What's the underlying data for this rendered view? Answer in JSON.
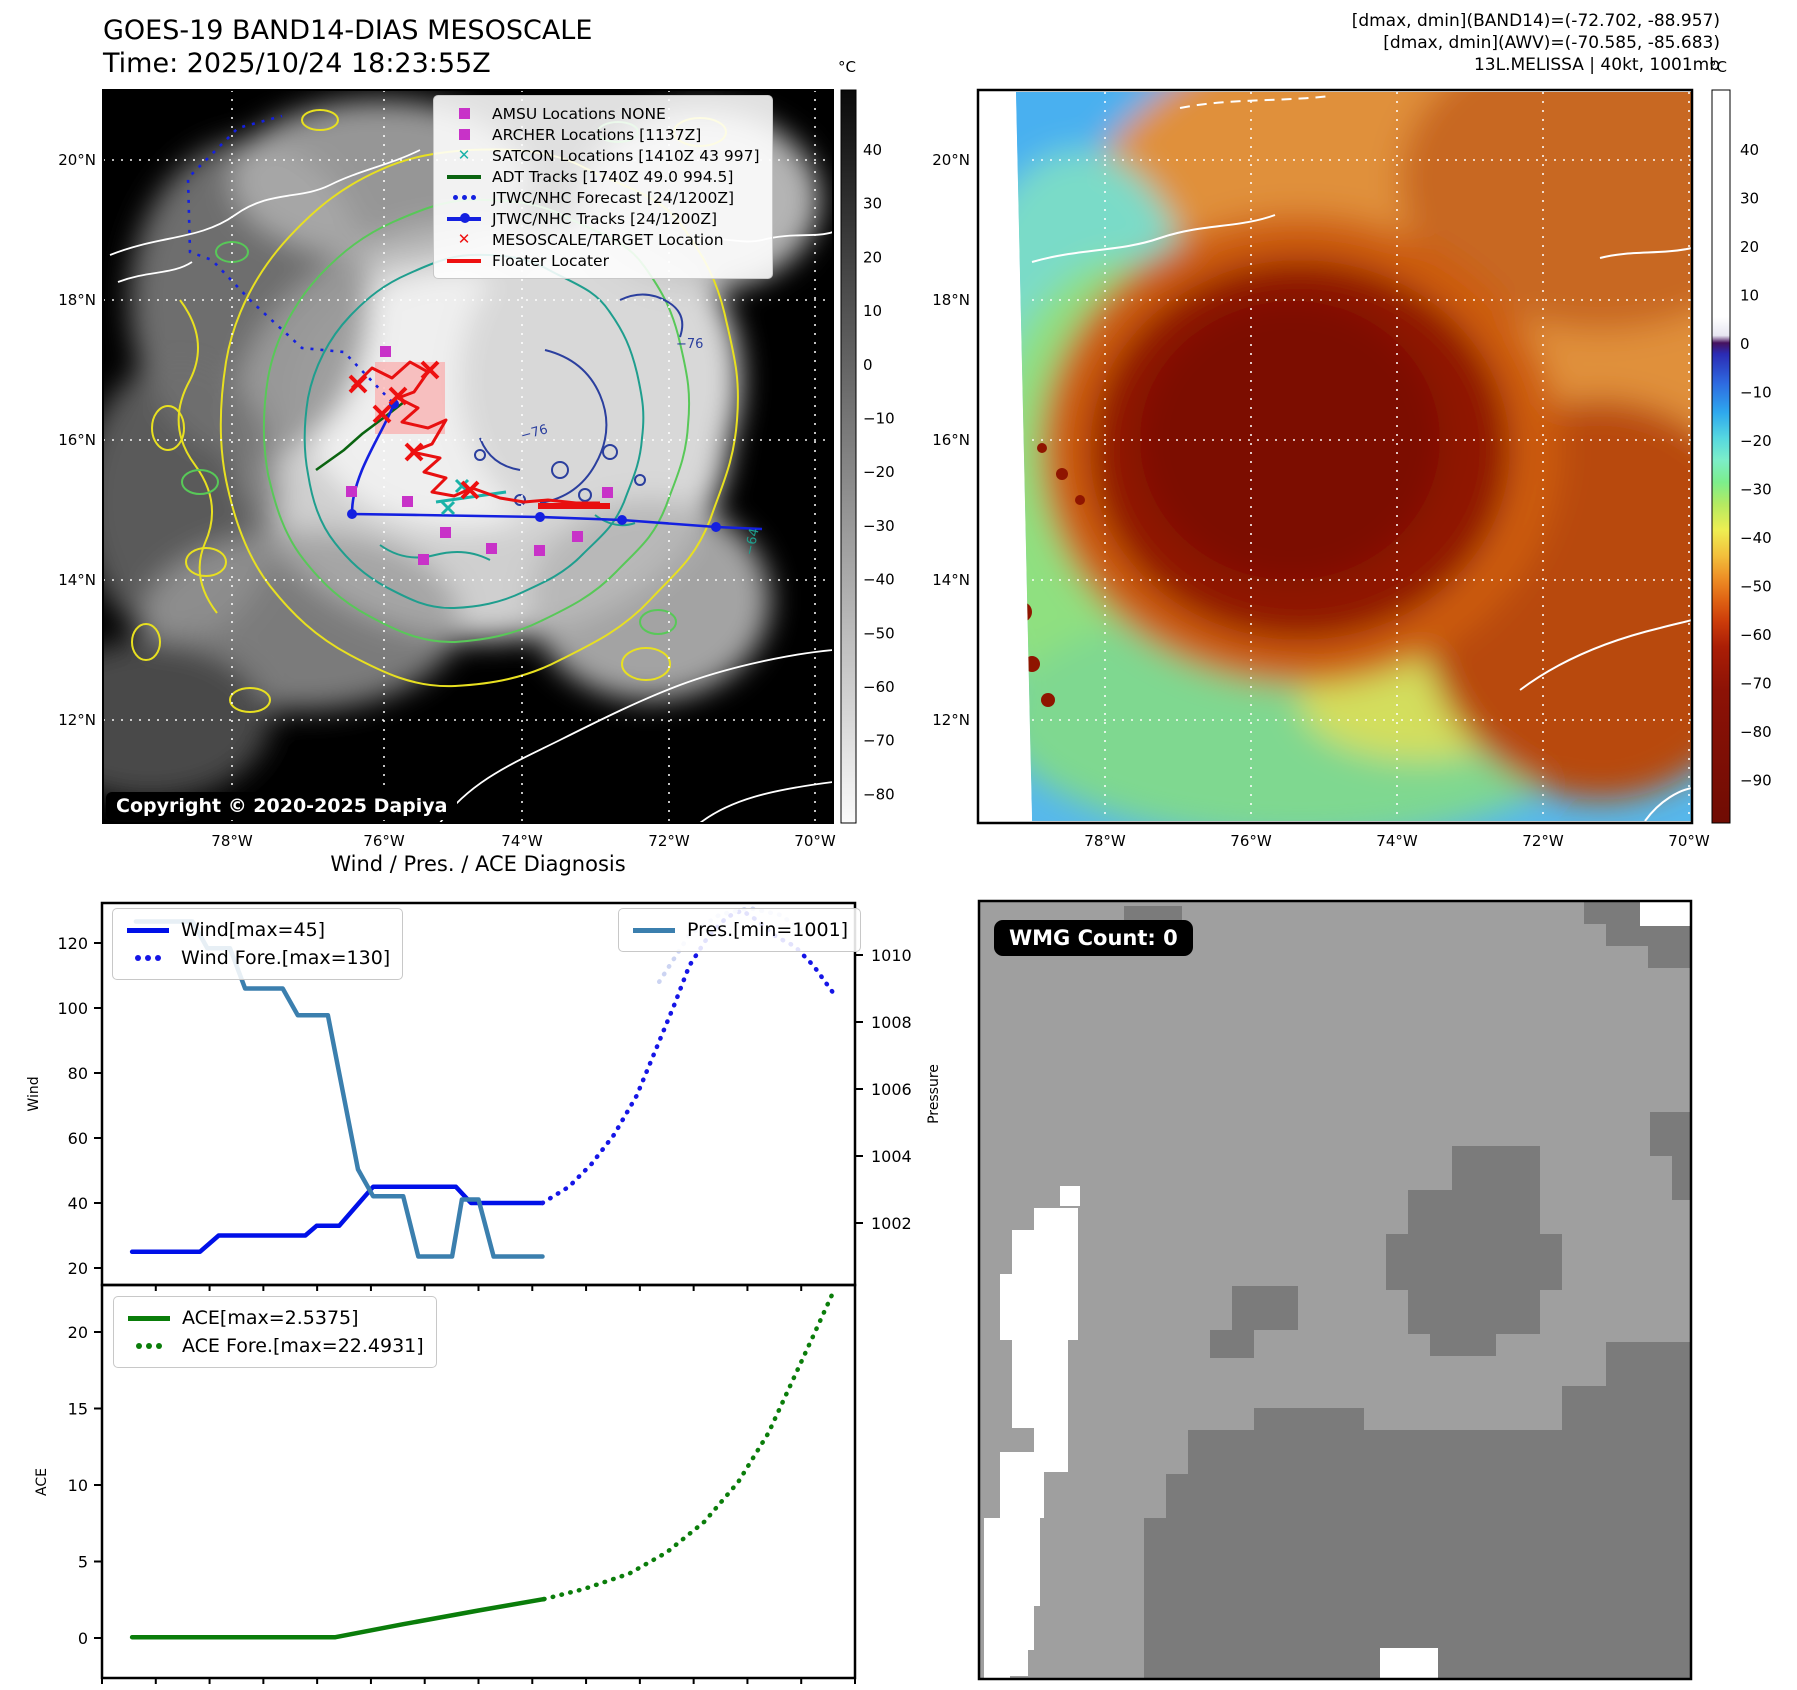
{
  "band14": {
    "title1": "GOES-19 BAND14-DIAS MESOSCALE",
    "title2": "Time: 2025/10/24 18:23:55Z",
    "copyright": "Copyright © 2020-2025 Dapiya",
    "lat_ticks": [
      "20°N",
      "18°N",
      "16°N",
      "14°N",
      "12°N"
    ],
    "lon_ticks": [
      "78°W",
      "76°W",
      "74°W",
      "72°W",
      "70°W"
    ],
    "colorbar": {
      "unit": "°C",
      "ticks": [
        40,
        30,
        20,
        10,
        0,
        -10,
        -20,
        -30,
        -40,
        -50,
        -60,
        -70,
        -80
      ]
    },
    "contour_labels": [
      "-76",
      "-76",
      "-64"
    ],
    "legend": [
      {
        "label": "AMSU Locations NONE",
        "marker": "square",
        "color": "#c832c8"
      },
      {
        "label": "ARCHER Locations [1137Z]",
        "marker": "square",
        "color": "#c832c8"
      },
      {
        "label": "SATCON Locations [1410Z 43 997]",
        "marker": "x",
        "color": "#1ab2a8"
      },
      {
        "label": "ADT Tracks [1740Z 49.0 994.5]",
        "marker": "line",
        "color": "#0a6410"
      },
      {
        "label": "JTWC/NHC Forecast [24/1200Z]",
        "marker": "dotted",
        "color": "#1420e0"
      },
      {
        "label": "JTWC/NHC Tracks [24/1200Z]",
        "marker": "line-dot",
        "color": "#1420e0"
      },
      {
        "label": "MESOSCALE/TARGET Location",
        "marker": "x",
        "color": "#ee1010"
      },
      {
        "label": "Floater Locater",
        "marker": "line",
        "color": "#ee1010"
      }
    ]
  },
  "awv": {
    "header1": "[dmax, dmin](BAND14)=(-72.702, -88.957)",
    "header2": "[dmax, dmin](AWV)=(-70.585, -85.683)",
    "header3": "13L.MELISSA | 40kt, 1001mb",
    "lat_ticks": [
      "20°N",
      "18°N",
      "16°N",
      "14°N",
      "12°N"
    ],
    "lon_ticks": [
      "78°W",
      "76°W",
      "74°W",
      "72°W",
      "70°W"
    ],
    "colorbar": {
      "unit": "°C",
      "ticks": [
        40,
        30,
        20,
        10,
        0,
        -10,
        -20,
        -30,
        -40,
        -50,
        -60,
        -70,
        -80,
        -90
      ]
    }
  },
  "diagnosis": {
    "title": "Wind / Pres. / ACE Diagnosis"
  },
  "wmg": {
    "label": "WMG Count: 0"
  },
  "chart_data": [
    {
      "id": "wind_pressure",
      "type": "line",
      "title": "Wind / Pres. / ACE Diagnosis",
      "ylabel": "Wind",
      "y2label": "Pressure",
      "ylim": [
        15,
        134
      ],
      "yticks": [
        20,
        40,
        60,
        80,
        100,
        120
      ],
      "y2lim": [
        1000.2,
        1011.7
      ],
      "y2ticks": [
        1002,
        1004,
        1006,
        1008,
        1010
      ],
      "legend_left": [
        "Wind[max=45]",
        "Wind Fore.[max=130]"
      ],
      "legend_right": [
        "Pres.[min=1001]"
      ],
      "series": [
        {
          "name": "Wind[max=45]",
          "axis": "y",
          "style": "solid",
          "color": "#0010e8",
          "x": [
            0.04,
            0.13,
            0.155,
            0.27,
            0.285,
            0.315,
            0.36,
            0.47,
            0.49,
            0.585
          ],
          "values": [
            25,
            25,
            30,
            30,
            33,
            33,
            45,
            45,
            40,
            40
          ]
        },
        {
          "name": "Wind Fore.[max=130]",
          "axis": "y",
          "style": "dotted",
          "color": "#1515e6",
          "x": [
            0.585,
            0.62,
            0.65,
            0.68,
            0.71,
            0.735,
            0.76,
            0.78,
            0.805,
            0.83,
            0.85,
            0.87,
            0.895,
            0.92,
            0.945,
            0.97
          ],
          "values": [
            40,
            45,
            52,
            61,
            73,
            87,
            101,
            113,
            122,
            128,
            130,
            127,
            122,
            119,
            113,
            105
          ]
        },
        {
          "name": "Pres.[min=1001]",
          "axis": "y2",
          "style": "solid",
          "color": "#3b7fae",
          "x": [
            0.045,
            0.12,
            0.14,
            0.17,
            0.19,
            0.24,
            0.26,
            0.3,
            0.34,
            0.36,
            0.4,
            0.42,
            0.465,
            0.478,
            0.5,
            0.52,
            0.585
          ],
          "values": [
            1011,
            1011,
            1010.2,
            1010.2,
            1009,
            1009,
            1008.2,
            1008.2,
            1003.6,
            1002.8,
            1002.8,
            1001,
            1001,
            1002.7,
            1002.7,
            1001,
            1001
          ]
        },
        {
          "name": "Pres. Fore.",
          "axis": "y2",
          "style": "dotted",
          "color": "#ccd4f2",
          "x": [
            0.74,
            0.78,
            0.82,
            0.86,
            0.9,
            0.94
          ],
          "values": [
            1009.2,
            1010.6,
            1011.2,
            1011.4,
            1011.2,
            1010.6
          ]
        }
      ]
    },
    {
      "id": "ace",
      "type": "line",
      "ylabel": "ACE",
      "ylim": [
        -2.7,
        23.1
      ],
      "yticks": [
        0,
        5,
        10,
        15,
        20
      ],
      "legend_left": [
        "ACE[max=2.5375]",
        "ACE Fore.[max=22.4931]"
      ],
      "series": [
        {
          "name": "ACE[max=2.5375]",
          "axis": "y",
          "style": "solid",
          "color": "#0a7d0a",
          "x": [
            0.04,
            0.31,
            0.4,
            0.5,
            0.587
          ],
          "values": [
            0.05,
            0.05,
            0.9,
            1.8,
            2.54
          ]
        },
        {
          "name": "ACE Fore.[max=22.4931]",
          "axis": "y",
          "style": "dotted",
          "color": "#0a7d0a",
          "x": [
            0.587,
            0.64,
            0.7,
            0.75,
            0.8,
            0.845,
            0.885,
            0.915,
            0.945,
            0.97
          ],
          "values": [
            2.54,
            3.2,
            4.2,
            5.6,
            7.6,
            10.2,
            13.4,
            16.6,
            19.8,
            22.49
          ]
        }
      ]
    }
  ]
}
